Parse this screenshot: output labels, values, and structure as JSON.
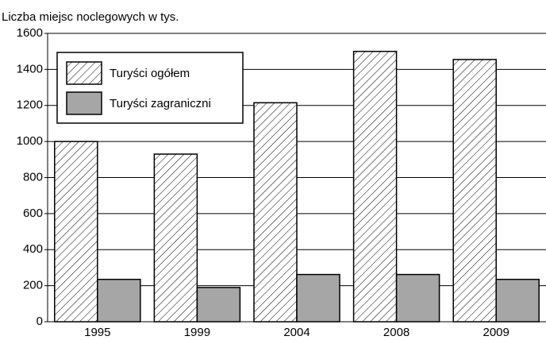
{
  "chart_data": {
    "type": "bar",
    "title": "Liczba miejsc noclegowych w tys.",
    "categories": [
      "1995",
      "1999",
      "2004",
      "2008",
      "2009"
    ],
    "series": [
      {
        "name": "Turyści ogółem",
        "color": "#000000",
        "hatch": true,
        "values": [
          1000,
          930,
          1215,
          1500,
          1455
        ]
      },
      {
        "name": "Turyści zagraniczni",
        "color": "#a6a6a6",
        "hatch": false,
        "values": [
          235,
          190,
          262,
          262,
          235
        ]
      }
    ],
    "ylim": [
      0,
      1600
    ],
    "yticks": [
      0,
      200,
      400,
      600,
      800,
      1000,
      1200,
      1400,
      1600
    ],
    "grid": true,
    "legend": "top-left"
  }
}
